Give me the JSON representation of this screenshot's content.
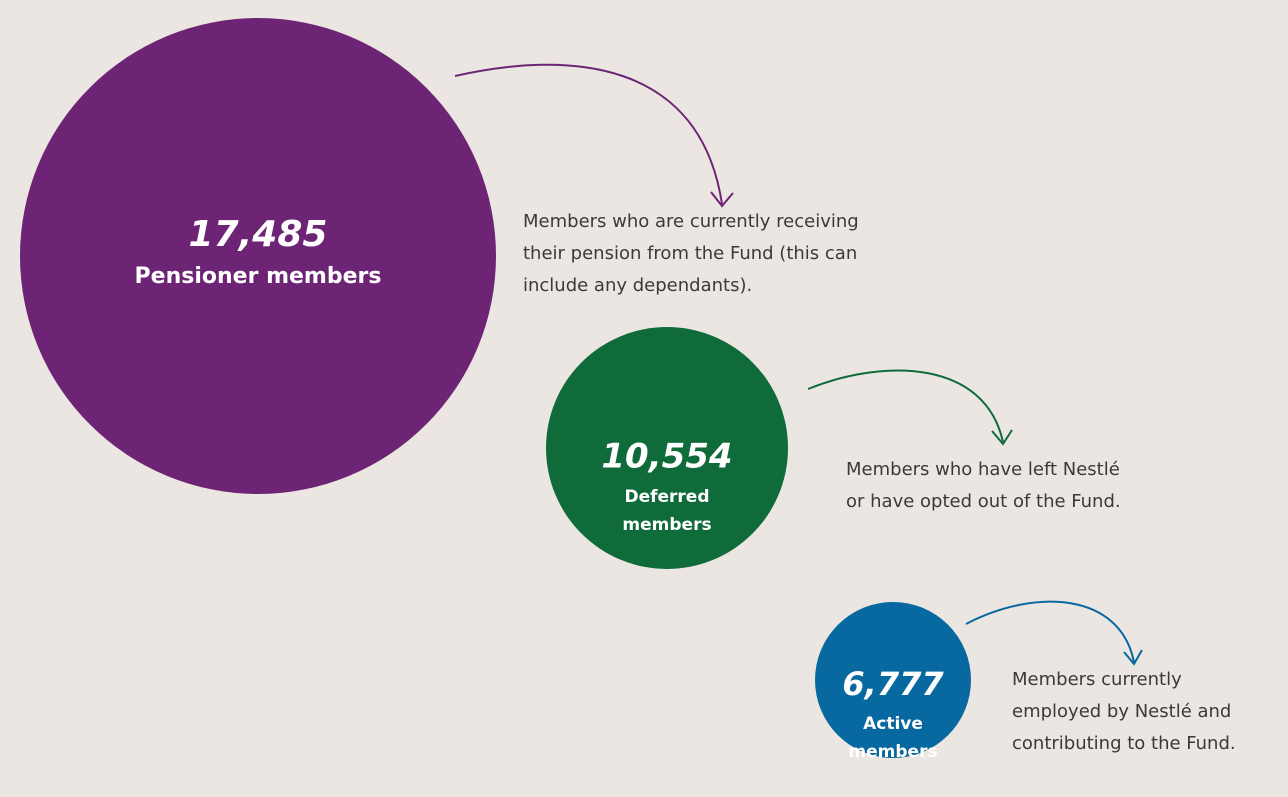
{
  "items": [
    {
      "value": "17,485",
      "label": [
        "Pensioner members"
      ],
      "color": "#6e2474",
      "description": [
        "Members who are currently receiving",
        "their pension from the Fund (this can",
        "include any dependants)."
      ]
    },
    {
      "value": "10,554",
      "label": [
        "Deferred",
        "members"
      ],
      "color": "#0f6b3a",
      "description": [
        "Members who have left Nestlé",
        "or have opted out of the Fund."
      ]
    },
    {
      "value": "6,777",
      "label": [
        "Active",
        "members"
      ],
      "color": "#0868a0",
      "description": [
        "Members currently",
        "employed by Nestlé and",
        "contributing to the Fund."
      ]
    }
  ]
}
